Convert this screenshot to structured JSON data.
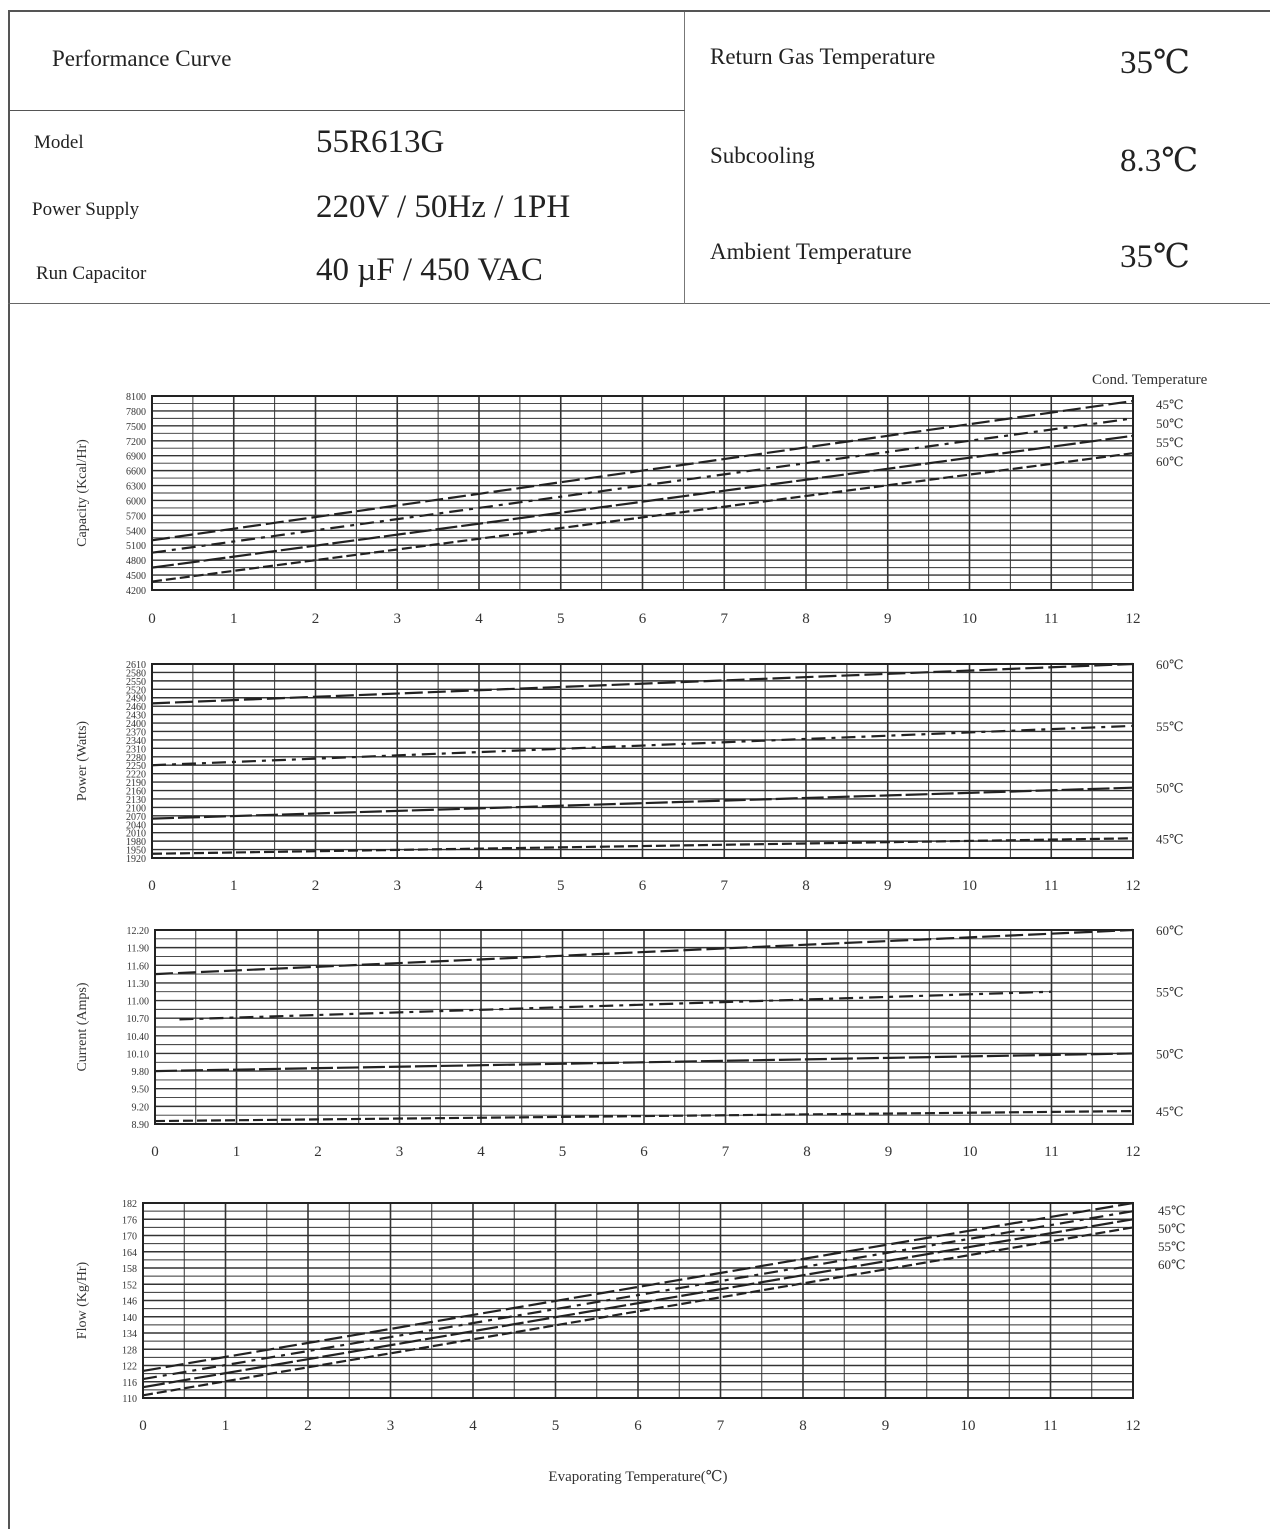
{
  "header": {
    "title": "Performance Curve",
    "model_label": "Model",
    "model_value": "55R613G",
    "power_label": "Power Supply",
    "power_value": "220V / 50Hz / 1PH",
    "cap_label": "Run Capacitor",
    "cap_value": "40 µF / 450 VAC",
    "rgt_label": "Return Gas Temperature",
    "rgt_value": "35℃",
    "sub_label": "Subcooling",
    "sub_value": "8.3℃",
    "amb_label": "Ambient Temperature",
    "amb_value": "35℃"
  },
  "chart_data": [
    {
      "type": "line",
      "ylabel": "Capacity (Kcal/Hr)",
      "legend_title": "Cond. Temperature",
      "x": [
        0,
        1,
        2,
        3,
        4,
        5,
        6,
        7,
        8,
        9,
        10,
        11,
        12
      ],
      "x_ticks": [
        "0",
        "1",
        "2",
        "3",
        "4",
        "5",
        "6",
        "7",
        "8",
        "9",
        "10",
        "11",
        "12"
      ],
      "ylim": [
        4200,
        8100
      ],
      "y_ticks": [
        "8100",
        "7800",
        "7500",
        "7200",
        "6900",
        "6600",
        "6300",
        "6000",
        "5700",
        "5400",
        "5100",
        "4800",
        "4500",
        "4200"
      ],
      "series": [
        {
          "name": "45℃",
          "x": [
            0,
            12
          ],
          "values": [
            5200,
            8000
          ]
        },
        {
          "name": "50℃",
          "x": [
            0,
            12
          ],
          "values": [
            4950,
            7650
          ]
        },
        {
          "name": "55℃",
          "x": [
            0,
            12
          ],
          "values": [
            4650,
            7300
          ]
        },
        {
          "name": "60℃",
          "x": [
            0,
            12
          ],
          "values": [
            4370,
            6950
          ]
        }
      ]
    },
    {
      "type": "line",
      "ylabel": "Power (Watts)",
      "x": [
        0,
        1,
        2,
        3,
        4,
        5,
        6,
        7,
        8,
        9,
        10,
        11,
        12
      ],
      "x_ticks": [
        "0",
        "1",
        "2",
        "3",
        "4",
        "5",
        "6",
        "7",
        "8",
        "9",
        "10",
        "11",
        "12"
      ],
      "ylim": [
        1920,
        2610
      ],
      "y_ticks": [
        "2610",
        "2580",
        "2550",
        "2520",
        "2490",
        "2460",
        "2430",
        "2400",
        "2370",
        "2340",
        "2310",
        "2280",
        "2250",
        "2220",
        "2190",
        "2160",
        "2130",
        "2100",
        "2070",
        "2040",
        "2010",
        "1980",
        "1950",
        "1920"
      ],
      "series": [
        {
          "name": "60℃",
          "x": [
            0,
            12
          ],
          "values": [
            2470,
            2610
          ]
        },
        {
          "name": "55℃",
          "x": [
            0,
            12
          ],
          "values": [
            2250,
            2390
          ]
        },
        {
          "name": "50℃",
          "x": [
            0,
            12
          ],
          "values": [
            2060,
            2170
          ]
        },
        {
          "name": "45℃",
          "x": [
            0,
            12
          ],
          "values": [
            1935,
            1990
          ]
        }
      ]
    },
    {
      "type": "line",
      "ylabel": "Current (Amps)",
      "x": [
        0,
        1,
        2,
        3,
        4,
        5,
        6,
        7,
        8,
        9,
        10,
        11,
        12
      ],
      "x_ticks": [
        "0",
        "1",
        "2",
        "3",
        "4",
        "5",
        "6",
        "7",
        "8",
        "9",
        "10",
        "11",
        "12"
      ],
      "ylim": [
        8.9,
        12.2
      ],
      "y_ticks": [
        "12.20",
        "11.90",
        "11.60",
        "11.30",
        "11.00",
        "10.70",
        "10.40",
        "10.10",
        "9.80",
        "9.50",
        "9.20",
        "8.90"
      ],
      "series": [
        {
          "name": "60℃",
          "x": [
            0,
            12
          ],
          "values": [
            11.45,
            12.2
          ]
        },
        {
          "name": "55℃",
          "x": [
            0.3,
            11
          ],
          "values": [
            10.68,
            11.15
          ]
        },
        {
          "name": "50℃",
          "x": [
            0,
            12
          ],
          "values": [
            9.8,
            10.1
          ]
        },
        {
          "name": "45℃",
          "x": [
            0,
            12
          ],
          "values": [
            8.95,
            9.12
          ]
        }
      ]
    },
    {
      "type": "line",
      "ylabel": "Flow (Kg/Hr)",
      "xlabel": "Evaporating Temperature(℃)",
      "x": [
        0,
        1,
        2,
        3,
        4,
        5,
        6,
        7,
        8,
        9,
        10,
        11,
        12
      ],
      "x_ticks": [
        "0",
        "1",
        "2",
        "3",
        "4",
        "5",
        "6",
        "7",
        "8",
        "9",
        "10",
        "11",
        "12"
      ],
      "ylim": [
        110,
        182
      ],
      "y_ticks": [
        "182",
        "176",
        "170",
        "164",
        "158",
        "152",
        "146",
        "140",
        "134",
        "128",
        "122",
        "116",
        "110"
      ],
      "series": [
        {
          "name": "45℃",
          "x": [
            0,
            12
          ],
          "values": [
            120,
            182
          ]
        },
        {
          "name": "50℃",
          "x": [
            0,
            12
          ],
          "values": [
            117,
            179
          ]
        },
        {
          "name": "55℃",
          "x": [
            0,
            12
          ],
          "values": [
            114,
            176
          ]
        },
        {
          "name": "60℃",
          "x": [
            0,
            12
          ],
          "values": [
            111,
            173
          ]
        }
      ]
    }
  ]
}
